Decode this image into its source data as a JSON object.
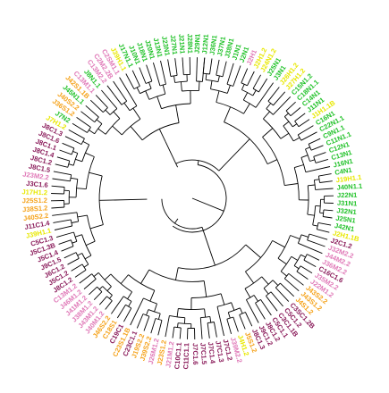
{
  "figure": {
    "type": "circular-dendrogram",
    "colors": {
      "branch": "#000000",
      "label_green": "#22c22a",
      "label_yellow": "#e8e800",
      "label_orange": "#f5a21a",
      "label_pink": "#e07ab8",
      "label_purple": "#8a1b5a",
      "label_darkpurple": "#6b1a4a",
      "background": "#ffffff"
    },
    "leaves": [
      {
        "label": "J12N1",
        "color": "green"
      },
      {
        "label": "J36N1",
        "color": "green"
      },
      {
        "label": "J37N1",
        "color": "green"
      },
      {
        "label": "J38N1",
        "color": "green"
      },
      {
        "label": "J1N1",
        "color": "green"
      },
      {
        "label": "J2N1",
        "color": "green"
      },
      {
        "label": "J2H1",
        "color": "pink"
      },
      {
        "label": "J2H1.2",
        "color": "yellow"
      },
      {
        "label": "J24N1.2",
        "color": "yellow"
      },
      {
        "label": "J25N1",
        "color": "green"
      },
      {
        "label": "J3N1",
        "color": "green"
      },
      {
        "label": "J26H1.2",
        "color": "yellow"
      },
      {
        "label": "J27H1.2",
        "color": "yellow"
      },
      {
        "label": "C15N1.2",
        "color": "green"
      },
      {
        "label": "C18N1.1",
        "color": "green"
      },
      {
        "label": "C14N1",
        "color": "green"
      },
      {
        "label": "J11N1",
        "color": "green"
      },
      {
        "label": "J1H1.1B",
        "color": "yellow"
      },
      {
        "label": "C16N1",
        "color": "green"
      },
      {
        "label": "C22N1.1",
        "color": "green"
      },
      {
        "label": "C9N1.1",
        "color": "green"
      },
      {
        "label": "C11N1.1",
        "color": "green"
      },
      {
        "label": "C12N1",
        "color": "green"
      },
      {
        "label": "C13N1",
        "color": "green"
      },
      {
        "label": "J16N1",
        "color": "green"
      },
      {
        "label": "C4N1",
        "color": "green"
      },
      {
        "label": "J19H1.1",
        "color": "yellow"
      },
      {
        "label": "J40N1.1",
        "color": "green"
      },
      {
        "label": "J22N1",
        "color": "green"
      },
      {
        "label": "J31N1",
        "color": "green"
      },
      {
        "label": "J32N1",
        "color": "green"
      },
      {
        "label": "J25N1",
        "color": "green"
      },
      {
        "label": "J42N1",
        "color": "green"
      },
      {
        "label": "J2H1.1B",
        "color": "yellow"
      },
      {
        "label": "J2C1.2",
        "color": "purple"
      },
      {
        "label": "J32M2.2",
        "color": "pink"
      },
      {
        "label": "J44M2.2",
        "color": "pink"
      },
      {
        "label": "J36M2.2",
        "color": "pink"
      },
      {
        "label": "C16C1.6",
        "color": "purple"
      },
      {
        "label": "J35M2.2",
        "color": "pink"
      },
      {
        "label": "J22M1.2",
        "color": "pink"
      },
      {
        "label": "J43S2.2",
        "color": "orange"
      },
      {
        "label": "J43S1.2",
        "color": "orange"
      },
      {
        "label": "J4S1.2",
        "color": "orange"
      },
      {
        "label": "C3SC1.2B",
        "color": "purple"
      },
      {
        "label": "C5C1.2",
        "color": "purple"
      },
      {
        "label": "C3C1.1B",
        "color": "purple"
      },
      {
        "label": "C5C1.1",
        "color": "purple"
      },
      {
        "label": "J8C1.2",
        "color": "purple"
      },
      {
        "label": "J9C1.2",
        "color": "purple"
      },
      {
        "label": "J8C1.3",
        "color": "purple"
      },
      {
        "label": "J5S1.2",
        "color": "orange"
      },
      {
        "label": "J4H1.2",
        "color": "yellow"
      },
      {
        "label": "J39M2.2",
        "color": "pink"
      },
      {
        "label": "J7C1.2",
        "color": "purple"
      },
      {
        "label": "J7C1.3",
        "color": "purple"
      },
      {
        "label": "J7C1.4",
        "color": "purple"
      },
      {
        "label": "J7C1.5",
        "color": "purple"
      },
      {
        "label": "J7C1.6",
        "color": "purple"
      },
      {
        "label": "C11C1.1",
        "color": "purple"
      },
      {
        "label": "C10C1.1",
        "color": "purple"
      },
      {
        "label": "J21M1.2",
        "color": "pink"
      },
      {
        "label": "J23S1.2",
        "color": "orange"
      },
      {
        "label": "J26M1.2",
        "color": "pink"
      },
      {
        "label": "J39S2.2",
        "color": "orange"
      },
      {
        "label": "J19S2.2",
        "color": "orange"
      },
      {
        "label": "C23C1.1",
        "color": "purple"
      },
      {
        "label": "C23S1.1B",
        "color": "orange"
      },
      {
        "label": "C19C1",
        "color": "purple"
      },
      {
        "label": "C18S1",
        "color": "orange"
      },
      {
        "label": "J46S2.2",
        "color": "orange"
      },
      {
        "label": "J40M1.2",
        "color": "pink"
      },
      {
        "label": "J43M1.2",
        "color": "pink"
      },
      {
        "label": "J38M1.2",
        "color": "pink"
      },
      {
        "label": "J41M1.2",
        "color": "pink"
      },
      {
        "label": "J46M1.2",
        "color": "pink"
      },
      {
        "label": "C13M1.2",
        "color": "pink"
      },
      {
        "label": "J8C1.2",
        "color": "purple"
      },
      {
        "label": "J5C1.2",
        "color": "purple"
      },
      {
        "label": "J6C1.2",
        "color": "purple"
      },
      {
        "label": "J9C1.5",
        "color": "purple"
      },
      {
        "label": "J5C1.4",
        "color": "purple"
      },
      {
        "label": "J5C1.3B",
        "color": "purple"
      },
      {
        "label": "C5C1.3",
        "color": "purple"
      },
      {
        "label": "J39H1.1",
        "color": "yellow"
      },
      {
        "label": "J11C1.4",
        "color": "purple"
      },
      {
        "label": "J40S2.2",
        "color": "orange"
      },
      {
        "label": "J38S1.2",
        "color": "orange"
      },
      {
        "label": "J25S1.2",
        "color": "orange"
      },
      {
        "label": "J17H1.2",
        "color": "yellow"
      },
      {
        "label": "J3C1.6",
        "color": "purple"
      },
      {
        "label": "J23M2.2",
        "color": "pink"
      },
      {
        "label": "J8C1.5",
        "color": "purple"
      },
      {
        "label": "J8C1.2",
        "color": "purple"
      },
      {
        "label": "J8C1.4",
        "color": "purple"
      },
      {
        "label": "J8C1.1",
        "color": "purple"
      },
      {
        "label": "J8C1.6",
        "color": "purple"
      },
      {
        "label": "J8C1.3",
        "color": "purple"
      },
      {
        "label": "J7H1.2",
        "color": "yellow"
      },
      {
        "label": "J7N2",
        "color": "green"
      },
      {
        "label": "J36S1.2",
        "color": "orange"
      },
      {
        "label": "J40S2.2",
        "color": "orange"
      },
      {
        "label": "J45N1.1",
        "color": "green"
      },
      {
        "label": "J42S1.1B",
        "color": "orange"
      },
      {
        "label": "C13M1.1",
        "color": "pink"
      },
      {
        "label": "J8N1.1",
        "color": "green"
      },
      {
        "label": "C13M2.2",
        "color": "pink"
      },
      {
        "label": "C2M2.2B",
        "color": "pink"
      },
      {
        "label": "C2SM1.1",
        "color": "pink"
      },
      {
        "label": "J39H1.1",
        "color": "yellow"
      },
      {
        "label": "J17N1.1",
        "color": "green"
      },
      {
        "label": "J10N1",
        "color": "green"
      },
      {
        "label": "J18N1",
        "color": "green"
      },
      {
        "label": "J20N1",
        "color": "green"
      },
      {
        "label": "J13N1",
        "color": "green"
      },
      {
        "label": "J23N1",
        "color": "green"
      },
      {
        "label": "J27N1",
        "color": "green"
      },
      {
        "label": "J21N1",
        "color": "green"
      },
      {
        "label": "J28N1",
        "color": "green"
      },
      {
        "label": "J29N1",
        "color": "green"
      }
    ]
  }
}
